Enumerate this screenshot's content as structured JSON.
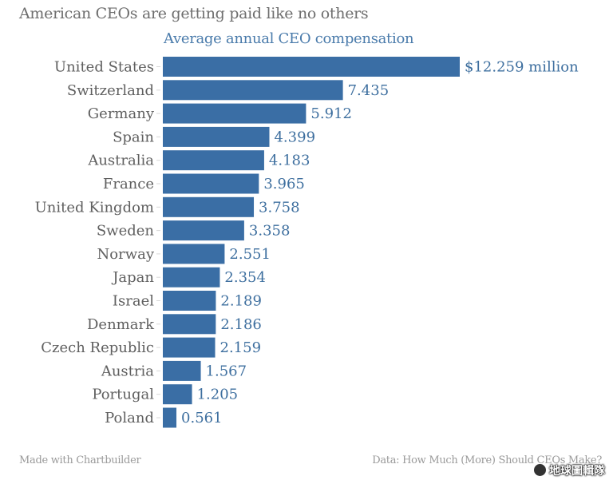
{
  "chart_data": {
    "type": "bar",
    "orientation": "horizontal",
    "title": "American CEOs are getting paid like no others",
    "subtitle": "Average annual CEO compensation",
    "xlabel": "",
    "ylabel": "",
    "unit_label": "$12.259 million",
    "xlim": [
      0,
      12.259
    ],
    "grid": false,
    "color": "#3a6ea5",
    "categories": [
      "United States",
      "Switzerland",
      "Germany",
      "Spain",
      "Australia",
      "France",
      "United Kingdom",
      "Sweden",
      "Norway",
      "Japan",
      "Israel",
      "Denmark",
      "Czech Republic",
      "Austria",
      "Portugal",
      "Poland"
    ],
    "values": [
      12.259,
      7.435,
      5.912,
      4.399,
      4.183,
      3.965,
      3.758,
      3.358,
      2.551,
      2.354,
      2.189,
      2.186,
      2.159,
      1.567,
      1.205,
      0.561
    ],
    "value_labels": [
      "$12.259 million",
      "7.435",
      "5.912",
      "4.399",
      "4.183",
      "3.965",
      "3.758",
      "3.358",
      "2.551",
      "2.354",
      "2.189",
      "2.186",
      "2.159",
      "1.567",
      "1.205",
      "0.561"
    ]
  },
  "footer": {
    "left": "Made with Chartbuilder",
    "right": "Data: How Much (More) Should CEOs Make?"
  },
  "watermark": "地球圖輯隊"
}
